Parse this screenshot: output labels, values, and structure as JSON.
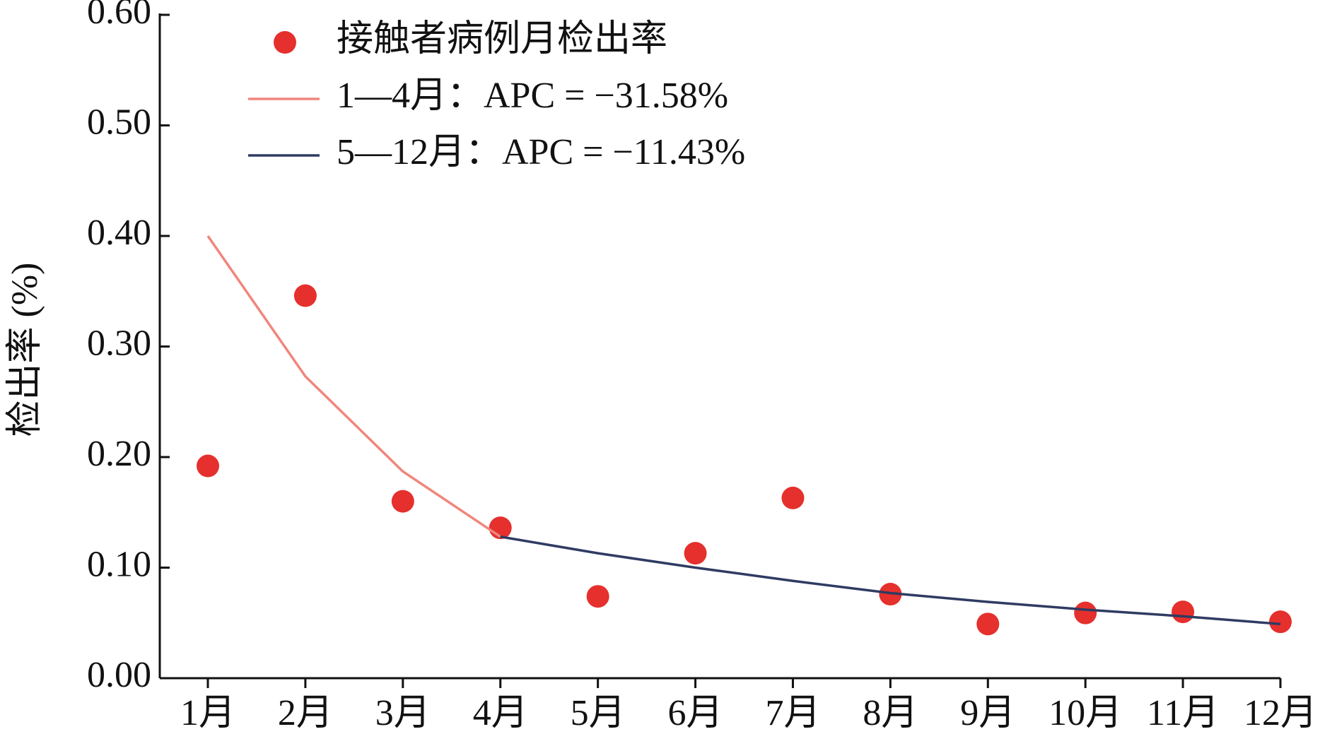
{
  "chart_data": {
    "type": "line",
    "ylabel": "检出率 (%)",
    "categories": [
      "1月",
      "2月",
      "3月",
      "4月",
      "5月",
      "6月",
      "7月",
      "8月",
      "9月",
      "10月",
      "11月",
      "12月"
    ],
    "series": [
      {
        "name": "接触者病例月检出率",
        "type": "scatter",
        "color": "#e5302d",
        "values": [
          0.192,
          0.346,
          0.16,
          0.136,
          0.074,
          0.113,
          0.163,
          0.076,
          0.049,
          0.059,
          0.06,
          0.051
        ]
      },
      {
        "name": "1—4月：APC = −31.58%",
        "type": "line",
        "color": "#f0867c",
        "values": [
          0.4,
          0.273,
          0.187,
          0.128,
          null,
          null,
          null,
          null,
          null,
          null,
          null,
          null
        ]
      },
      {
        "name": "5—12月：APC = −11.43%",
        "type": "line",
        "color": "#2f3b62",
        "values": [
          null,
          null,
          null,
          0.128,
          0.113,
          0.1,
          0.088,
          0.077,
          0.069,
          0.062,
          0.056,
          0.049
        ]
      }
    ],
    "ylim": [
      0,
      0.6
    ],
    "yticks": [
      {
        "value": 0,
        "label": "0.00"
      },
      {
        "value": 0.1,
        "label": "0.10"
      },
      {
        "value": 0.2,
        "label": "0.20"
      },
      {
        "value": 0.3,
        "label": "0.30"
      },
      {
        "value": 0.4,
        "label": "0.40"
      },
      {
        "value": 0.5,
        "label": "0.50"
      },
      {
        "value": 0.6,
        "label": "0.60"
      }
    ],
    "grid": false,
    "legend": "upper left"
  }
}
